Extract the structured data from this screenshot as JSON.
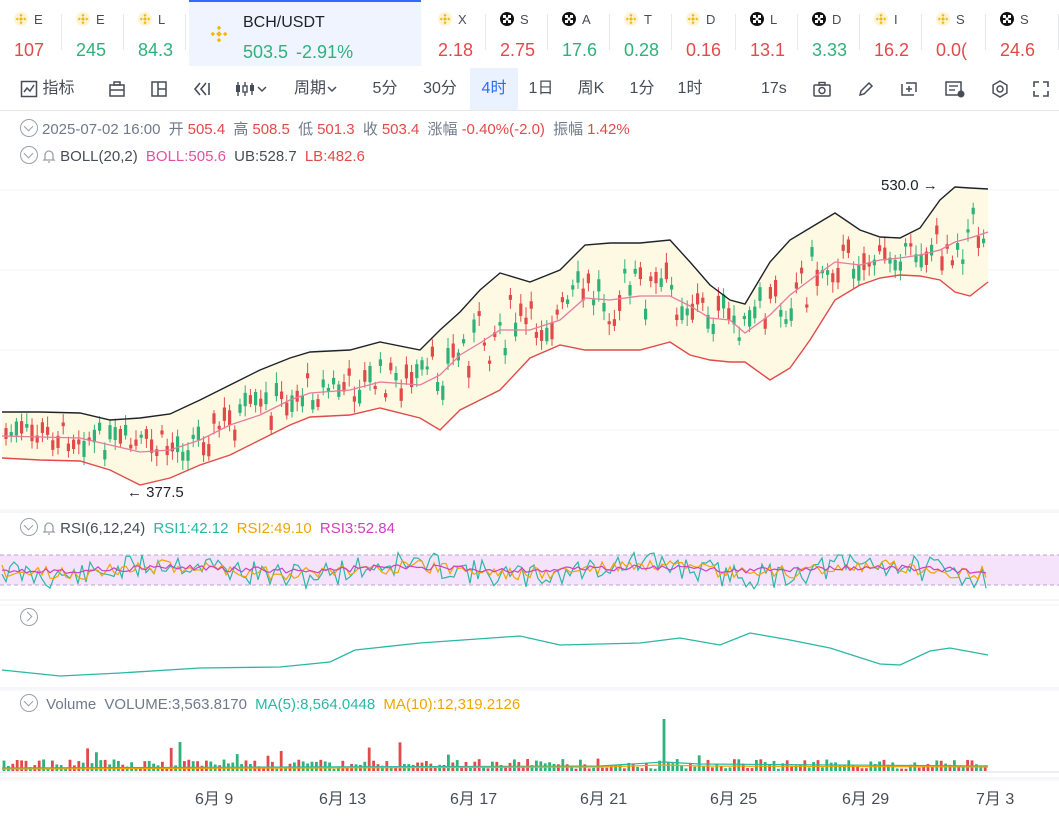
{
  "tickers": [
    {
      "sym": "E",
      "value": "107",
      "dir": "down",
      "icon": "binance-icon"
    },
    {
      "sym": "E",
      "value": "245",
      "dir": "up",
      "icon": "binance-icon"
    },
    {
      "sym": "L",
      "value": "84.3",
      "dir": "up",
      "icon": "binance-icon"
    },
    {
      "sym": "X",
      "value": "2.18",
      "dir": "down",
      "icon": "binance-icon"
    },
    {
      "sym": "S",
      "value": "2.75",
      "dir": "down",
      "icon": "okx-icon"
    },
    {
      "sym": "A",
      "value": "17.6",
      "dir": "up",
      "icon": "okx-icon"
    },
    {
      "sym": "T",
      "value": "0.28",
      "dir": "up",
      "icon": "binance-icon"
    },
    {
      "sym": "D",
      "value": "0.16",
      "dir": "down",
      "icon": "binance-icon"
    },
    {
      "sym": "L",
      "value": "13.1",
      "dir": "down",
      "icon": "okx-icon"
    },
    {
      "sym": "D",
      "value": "3.33",
      "dir": "up",
      "icon": "okx-icon"
    },
    {
      "sym": "I",
      "value": "16.2",
      "dir": "down",
      "icon": "binance-icon"
    },
    {
      "sym": "S",
      "value": "0.0(",
      "dir": "down",
      "icon": "binance-icon"
    },
    {
      "sym": "S",
      "value": "24.6",
      "dir": "down",
      "icon": "okx-icon"
    }
  ],
  "active_ticker": {
    "sym": "BCH/USDT",
    "price": "503.5",
    "change": "-2.91%",
    "icon": "binance-icon"
  },
  "toolbar": {
    "indicators_label": "指标",
    "period_label": "周期",
    "intervals": [
      "5分",
      "30分",
      "4时",
      "1日",
      "周K",
      "1分",
      "1时"
    ],
    "selected_interval": "4时",
    "countdown": "17s"
  },
  "ohlc": {
    "date": "2025-07-02 16:00",
    "open_label": "开",
    "open": "505.4",
    "high_label": "高",
    "high": "508.5",
    "low_label": "低",
    "low": "501.3",
    "close_label": "收",
    "close": "503.4",
    "change_label": "涨幅",
    "change": "-0.40%(-2.0)",
    "amp_label": "振幅",
    "amp": "1.42%"
  },
  "boll": {
    "name": "BOLL(20,2)",
    "boll": "BOLL:505.6",
    "ub": "UB:528.7",
    "lb": "LB:482.6"
  },
  "rsi": {
    "name": "RSI(6,12,24)",
    "rsi1": "RSI1:42.12",
    "rsi2": "RSI2:49.10",
    "rsi3": "RSI3:52.84"
  },
  "volume": {
    "name": "Volume",
    "vol": "VOLUME:3,563.8170",
    "ma5": "MA(5):8,564.0448",
    "ma10": "MA(10):12,319.2126"
  },
  "colors": {
    "up": "#2fb27a",
    "down": "#e24a4a",
    "ub": "#1e2329",
    "lb": "#e24a4a",
    "mid": "#e87aa0",
    "band_fill": "#fdf9e3",
    "rsi1": "#2ab7a4",
    "rsi2": "#f0a500",
    "rsi3": "#cf3fc0"
  },
  "chart_data": {
    "type": "candlestick",
    "price_high_label": "530.0",
    "price_low_label": "377.5",
    "x_tick_labels": [
      "6月 9",
      "6月 13",
      "6月 17",
      "6月 21",
      "6月 25",
      "6月 29",
      "7月 3"
    ]
  }
}
